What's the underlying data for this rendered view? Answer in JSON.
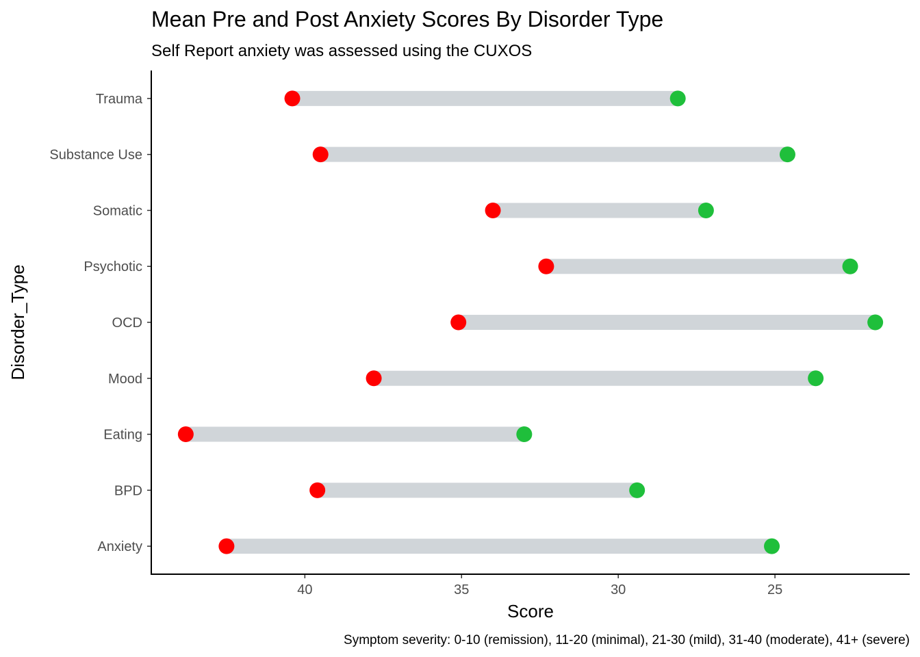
{
  "chart_data": {
    "type": "dumbbell",
    "title": "Mean Pre and Post Anxiety Scores By Disorder Type",
    "subtitle": "Self Report anxiety was assessed using the CUXOS",
    "xlabel": "Score",
    "ylabel": "Disorder_Type",
    "caption": "Symptom severity: 0-10 (remission), 11-20 (minimal), 21-30 (mild), 31-40 (moderate), 41+ (severe)",
    "x_reversed": true,
    "xlim": [
      44.9,
      20.7
    ],
    "x_ticks": [
      40,
      35,
      30,
      25
    ],
    "grid": false,
    "colors": {
      "pre": "#ff0000",
      "post": "#1fbf3b",
      "segment": "#d0d5d9"
    },
    "categories": [
      "Anxiety",
      "BPD",
      "Eating",
      "Mood",
      "OCD",
      "Psychotic",
      "Somatic",
      "Substance Use",
      "Trauma"
    ],
    "series": [
      {
        "values": [
          42.5,
          39.6,
          43.8,
          37.8,
          35.1,
          32.3,
          34.0,
          39.5,
          40.4
        ]
      },
      {
        "values": [
          25.1,
          29.4,
          33.0,
          23.7,
          21.8,
          22.6,
          27.2,
          24.6,
          28.1
        ]
      }
    ]
  }
}
